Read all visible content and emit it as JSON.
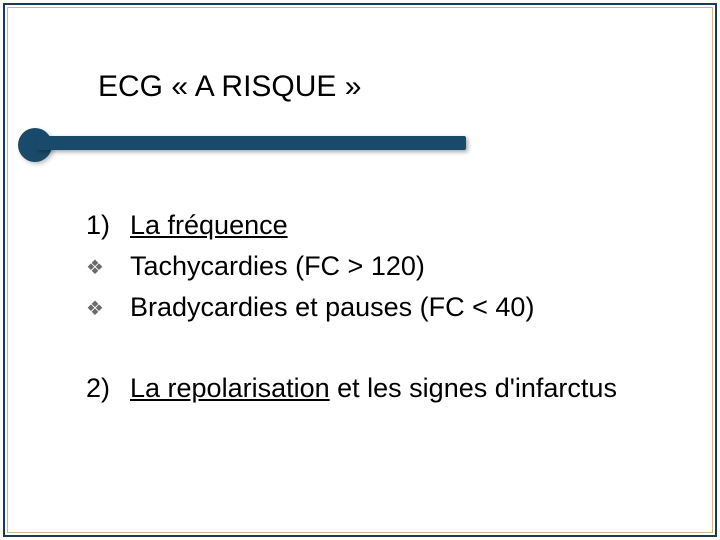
{
  "slide": {
    "title": "ECG « A RISQUE »",
    "section1": {
      "number": "1)",
      "heading": "La fréquence",
      "bullets": [
        "Tachycardies (FC > 120)",
        "Bradycardies et pauses (FC < 40)"
      ]
    },
    "section2": {
      "number": "2)",
      "heading_underlined": "La repolarisation",
      "heading_rest": " et les signes d'infarctus"
    }
  },
  "style": {
    "accent_color": "#1a4a6a",
    "border_color": "#1a3a5c",
    "inner_border_color": "#c9b88a",
    "background": "#ffffff",
    "bullet_glyph": "❖",
    "title_fontsize": 30,
    "body_fontsize": 27
  }
}
